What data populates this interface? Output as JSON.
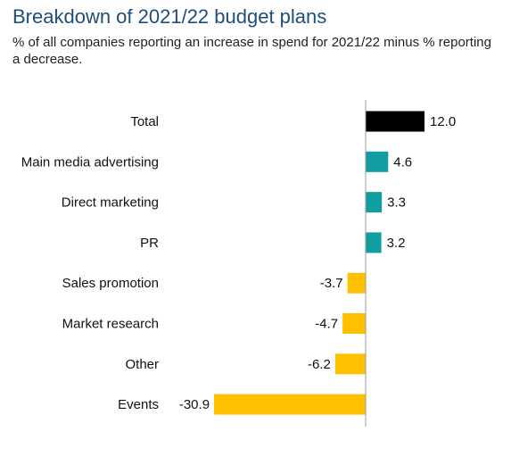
{
  "chart_data": {
    "type": "bar",
    "orientation": "horizontal",
    "title": "Breakdown of 2021/22 budget plans",
    "subtitle": "% of all companies reporting an increase in spend for 2021/22 minus % reporting a decrease.",
    "categories": [
      "Total",
      "Main media advertising",
      "Direct marketing",
      "PR",
      "Sales promotion",
      "Market research",
      "Other",
      "Events"
    ],
    "values": [
      12.0,
      4.6,
      3.3,
      3.2,
      -3.7,
      -4.7,
      -6.2,
      -30.9
    ],
    "value_labels": [
      "12.0",
      "4.6",
      "3.3",
      "3.2",
      "-3.7",
      "-4.7",
      "-6.2",
      "-30.9"
    ],
    "bar_colors": [
      "#000000",
      "#109ea0",
      "#109ea0",
      "#109ea0",
      "#ffc000",
      "#ffc000",
      "#ffc000",
      "#ffc000"
    ],
    "xlim": [
      -31,
      13
    ],
    "grid": false,
    "legend": "none"
  },
  "colors": {
    "title": "#1f4e79",
    "total": "#000000",
    "positive": "#109ea0",
    "negative": "#ffc000",
    "axis": "#999999"
  }
}
